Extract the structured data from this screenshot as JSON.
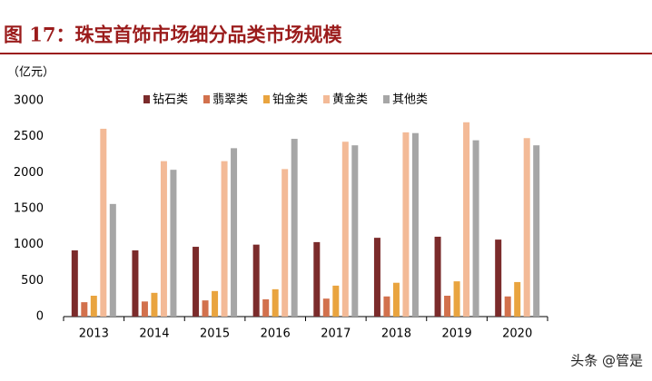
{
  "chart_data": {
    "type": "bar",
    "title": "图 17：珠宝首饰市场细分品类市场规模",
    "unit_label": "（亿元）",
    "categories": [
      "2013",
      "2014",
      "2015",
      "2016",
      "2017",
      "2018",
      "2019",
      "2020"
    ],
    "series": [
      {
        "name": "钻石类",
        "color": "#7b2b2b",
        "values": [
          920,
          920,
          970,
          1000,
          1035,
          1095,
          1110,
          1070
        ]
      },
      {
        "name": "翡翠类",
        "color": "#d2714d",
        "values": [
          200,
          210,
          225,
          240,
          250,
          280,
          290,
          280
        ]
      },
      {
        "name": "铂金类",
        "color": "#e9a43f",
        "values": [
          290,
          330,
          355,
          380,
          430,
          470,
          490,
          480
        ]
      },
      {
        "name": "黄金类",
        "color": "#f3ba97",
        "values": [
          2610,
          2160,
          2160,
          2050,
          2430,
          2560,
          2700,
          2480
        ]
      },
      {
        "name": "其他类",
        "color": "#a6a6a6",
        "values": [
          1565,
          2040,
          2340,
          2470,
          2380,
          2550,
          2450,
          2380
        ]
      }
    ],
    "ylim": [
      0,
      3000
    ],
    "yticks": [
      0,
      500,
      1000,
      1500,
      2000,
      2500,
      3000
    ],
    "grid": false
  },
  "watermark": "头条 @管是"
}
